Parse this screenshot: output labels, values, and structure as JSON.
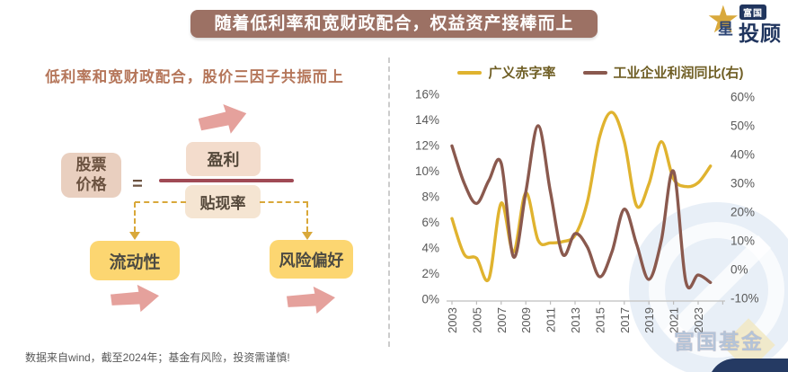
{
  "header": {
    "title": "随着低利率和宽财政配合，权益资产接棒而上"
  },
  "logo": {
    "badge": "富国",
    "star_char": "星",
    "suffix": "投顾",
    "star_color": "#d9a93c",
    "navy": "#20355e"
  },
  "left_panel": {
    "subtitle": "低利率和宽财政配合，股价三因子共振而上",
    "formula": {
      "left_box": "股票\n价格",
      "equals": "=",
      "numerator": "盈利",
      "denominator": "贴现率"
    },
    "factor_left": "流动性",
    "factor_right": "风险偏好"
  },
  "chart": {
    "legend": [
      {
        "label": "广义赤字率",
        "color": "#e0b32f"
      },
      {
        "label": "工业企业利润同比(右)",
        "color": "#8a594e"
      }
    ]
  },
  "chart_data": {
    "type": "line",
    "title": "",
    "x": [
      2003,
      2004,
      2005,
      2006,
      2007,
      2008,
      2009,
      2010,
      2011,
      2012,
      2013,
      2014,
      2015,
      2016,
      2017,
      2018,
      2019,
      2020,
      2021,
      2022,
      2023,
      2024
    ],
    "series": [
      {
        "name": "广义赤字率",
        "axis": "left",
        "color": "#e0b32f",
        "values": [
          6.3,
          3.5,
          3.2,
          1.6,
          7.5,
          3.7,
          8.3,
          4.6,
          4.4,
          4.5,
          5.0,
          7.6,
          12.7,
          14.6,
          12.3,
          7.3,
          9.0,
          12.3,
          9.4,
          8.8,
          9.1,
          10.4
        ]
      },
      {
        "name": "工业企业利润同比(右)",
        "axis": "right",
        "color": "#8a594e",
        "values": [
          43,
          30,
          23,
          31,
          37,
          4.4,
          27,
          50,
          27,
          5.3,
          12.5,
          7.8,
          -2.5,
          6.2,
          21,
          8.8,
          -3.4,
          9.9,
          34.2,
          -4.2,
          -1.9,
          -4.5
        ]
      }
    ],
    "left_axis": {
      "min": 0,
      "max": 16,
      "ticks": [
        "16%",
        "14%",
        "12%",
        "10%",
        "8%",
        "6%",
        "4%",
        "2%",
        "0%"
      ]
    },
    "right_axis": {
      "min": -10,
      "max": 60,
      "ticks": [
        "60%",
        "50%",
        "40%",
        "30%",
        "20%",
        "10%",
        "0%",
        "-10%"
      ]
    },
    "x_tick_labels": [
      "2003",
      "2005",
      "2007",
      "2009",
      "2011",
      "2013",
      "2015",
      "2017",
      "2019",
      "2021",
      "2023"
    ],
    "grid": false,
    "legend_position": "top"
  },
  "watermark": {
    "text": "富国基金"
  },
  "footer": {
    "disclaimer": "数据来自wind，截至2024年；基金有风险，投资需谨慎!"
  }
}
